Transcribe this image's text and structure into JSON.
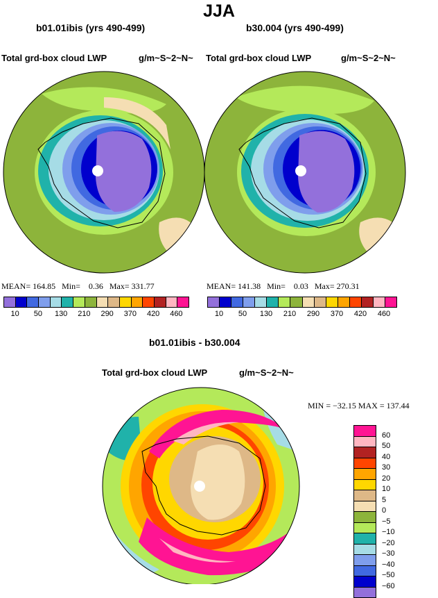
{
  "figure": {
    "title": "JJA",
    "left_panel": {
      "title": "b01.01ibis (yrs 490-499)",
      "variable": "Total grd-box cloud LWP",
      "units": "g/m~S~2~N~",
      "stats": {
        "mean_label": "MEAN=",
        "mean": "164.85",
        "min_label": "Min=",
        "min": "0.36",
        "max_label": "Max=",
        "max": "331.77"
      }
    },
    "right_panel": {
      "title": "b30.004 (yrs 490-499)",
      "variable": "Total grd-box cloud LWP",
      "units": "g/m~S~2~N~",
      "stats": {
        "mean_label": "MEAN=",
        "mean": "141.38",
        "min_label": "Min=",
        "min": "0.03",
        "max_label": "Max=",
        "max": "270.31"
      }
    },
    "diff_panel": {
      "title": "b01.01ibis - b30.004",
      "variable": "Total grd-box cloud LWP",
      "units": "g/m~S~2~N~",
      "minmax": "MIN = −32.15  MAX = 137.44"
    }
  },
  "chart_data": [
    {
      "type": "heatmap",
      "projection": "south polar stereographic",
      "title": "b01.01ibis (yrs 490-499)",
      "variable": "Total grd-box cloud LWP",
      "units": "g/m~S~2~N~",
      "stats": {
        "mean": 164.85,
        "min": 0.36,
        "max": 331.77
      },
      "colorbar_levels": [
        10,
        50,
        130,
        210,
        290,
        370,
        420,
        460
      ],
      "colorbar_colors": [
        "#9370db",
        "#0000cd",
        "#4169e1",
        "#7f9eec",
        "#a6dce6",
        "#20b2aa",
        "#b4e95a",
        "#8db43b",
        "#f5deb3",
        "#deb887",
        "#ffd700",
        "#ffa500",
        "#ff4500",
        "#b22222",
        "#ffb6c1",
        "#ff1493"
      ]
    },
    {
      "type": "heatmap",
      "projection": "south polar stereographic",
      "title": "b30.004 (yrs 490-499)",
      "variable": "Total grd-box cloud LWP",
      "units": "g/m~S~2~N~",
      "stats": {
        "mean": 141.38,
        "min": 0.03,
        "max": 270.31
      },
      "colorbar_levels": [
        10,
        50,
        130,
        210,
        290,
        370,
        420,
        460
      ],
      "colorbar_colors": [
        "#9370db",
        "#0000cd",
        "#4169e1",
        "#7f9eec",
        "#a6dce6",
        "#20b2aa",
        "#b4e95a",
        "#8db43b",
        "#f5deb3",
        "#deb887",
        "#ffd700",
        "#ffa500",
        "#ff4500",
        "#b22222",
        "#ffb6c1",
        "#ff1493"
      ]
    },
    {
      "type": "heatmap",
      "projection": "south polar stereographic",
      "title": "b01.01ibis - b30.004",
      "variable": "Total grd-box cloud LWP",
      "units": "g/m~S~2~N~",
      "stats": {
        "min": -32.15,
        "max": 137.44
      },
      "colorbar_levels": [
        60,
        50,
        40,
        30,
        20,
        10,
        5,
        0,
        -5,
        -10,
        -20,
        -30,
        -40,
        -50,
        -60
      ],
      "colorbar_colors": [
        "#ff1493",
        "#ffb6c1",
        "#b22222",
        "#ff4500",
        "#ffa500",
        "#ffd700",
        "#deb887",
        "#f5deb3",
        "#8db43b",
        "#b4e95a",
        "#20b2aa",
        "#a6dce6",
        "#7f9eec",
        "#4169e1",
        "#0000cd",
        "#9370db"
      ]
    }
  ]
}
